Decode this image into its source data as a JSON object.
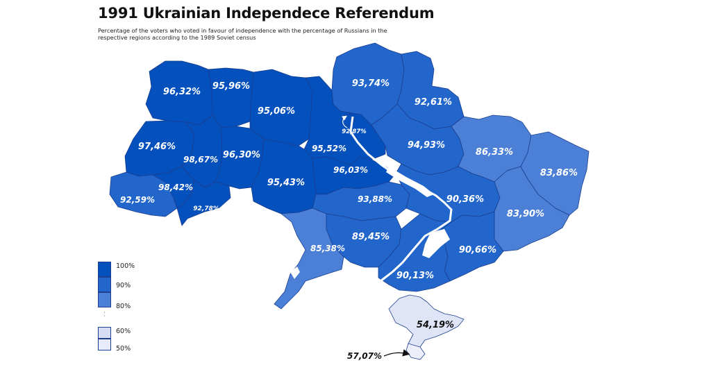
{
  "title": "1991 Ukrainian Independece Referendum",
  "subtitle": "Percentage of the voters who voted in favour of independence with the percentage of Russians in the respective regions according to the 1989 Soviet census",
  "colors": {
    "c95": "#0450bd",
    "c90": "#2266cc",
    "c80": "#4b80d6",
    "c55": "#dfe4f6",
    "c50": "#eceffa",
    "water": "#ffffff"
  },
  "legend": {
    "items": [
      {
        "label": "100%",
        "color": "#0450bd"
      },
      {
        "label": "90%",
        "color": "#2266cc"
      },
      {
        "label": "80%",
        "color": "#4b80d6"
      },
      {
        "label": "60%",
        "color": "#d5dcf4"
      },
      {
        "label": "50%",
        "color": "#e8ecfa"
      }
    ],
    "dots": "·\n·"
  },
  "regions": [
    {
      "name": "Volyn",
      "value": "96,32%"
    },
    {
      "name": "Rivne",
      "value": "95,96%"
    },
    {
      "name": "Zhytomyr",
      "value": "95,06%"
    },
    {
      "name": "Kyiv city",
      "value": "92,87%"
    },
    {
      "name": "Chernihiv",
      "value": "93,74%"
    },
    {
      "name": "Sumy",
      "value": "92,61%"
    },
    {
      "name": "Lviv",
      "value": "97,46%"
    },
    {
      "name": "Ternopil",
      "value": "98,67%"
    },
    {
      "name": "Khmelnytskyi",
      "value": "96,30%"
    },
    {
      "name": "Kyiv",
      "value": "95,52%"
    },
    {
      "name": "Poltava",
      "value": "94,93%"
    },
    {
      "name": "Kharkiv",
      "value": "86,33%"
    },
    {
      "name": "Luhansk",
      "value": "83,86%"
    },
    {
      "name": "Ivano-Frankivsk",
      "value": "98,42%"
    },
    {
      "name": "Zakarpattia",
      "value": "92,59%"
    },
    {
      "name": "Chernivtsi",
      "value": "92,78%"
    },
    {
      "name": "Vinnytsia",
      "value": "95,43%"
    },
    {
      "name": "Cherkasy",
      "value": "96,03%"
    },
    {
      "name": "Kirovohrad",
      "value": "93,88%"
    },
    {
      "name": "Dnipropetrovsk",
      "value": "90,36%"
    },
    {
      "name": "Donetsk",
      "value": "83,90%"
    },
    {
      "name": "Odesa",
      "value": "85,38%"
    },
    {
      "name": "Mykolaiv",
      "value": "89,45%"
    },
    {
      "name": "Zaporizhzhia",
      "value": "90,66%"
    },
    {
      "name": "Kherson",
      "value": "90,13%"
    },
    {
      "name": "Crimea",
      "value": "54,19%"
    },
    {
      "name": "Sevastopol",
      "value": "57,07%"
    }
  ]
}
